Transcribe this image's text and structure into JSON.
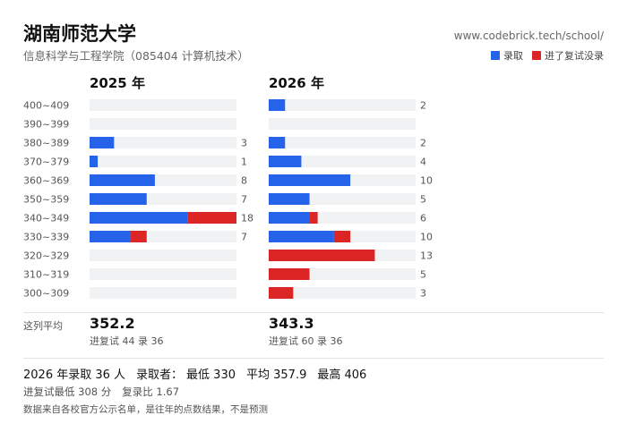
{
  "header": {
    "title": "湖南师范大学",
    "subtitle": "信息科学与工程学院（085404 计算机技术）",
    "url": "www.codebrick.tech/school/"
  },
  "legend": {
    "admitted": {
      "label": "录取",
      "color": "#2563eb"
    },
    "rejected": {
      "label": "进了复试没录",
      "color": "#dc2626"
    }
  },
  "chart_data": {
    "type": "bar",
    "orientation": "horizontal",
    "stacked": true,
    "categories": [
      "400~409",
      "390~399",
      "380~389",
      "370~379",
      "360~369",
      "350~359",
      "340~349",
      "330~339",
      "320~329",
      "310~319",
      "300~309"
    ],
    "panels": [
      {
        "year_label": "2025 年",
        "admitted": [
          0,
          0,
          3,
          1,
          8,
          7,
          12,
          5,
          0,
          0,
          0
        ],
        "rejected": [
          0,
          0,
          0,
          0,
          0,
          0,
          6,
          2,
          0,
          0,
          0
        ],
        "totals": [
          "",
          "",
          "3",
          "1",
          "8",
          "7",
          "18",
          "7",
          "",
          "",
          ""
        ],
        "xlim": [
          0,
          18
        ]
      },
      {
        "year_label": "2026 年",
        "admitted": [
          2,
          0,
          2,
          4,
          10,
          5,
          5,
          8,
          0,
          0,
          0
        ],
        "rejected": [
          0,
          0,
          0,
          0,
          0,
          0,
          1,
          2,
          13,
          5,
          3
        ],
        "totals": [
          "2",
          "",
          "2",
          "4",
          "10",
          "5",
          "6",
          "10",
          "13",
          "5",
          "3"
        ],
        "xlim": [
          0,
          18
        ]
      }
    ]
  },
  "averages": {
    "label": "这列平均",
    "panels": [
      {
        "value": "352.2",
        "note": "进复试 44 录 36"
      },
      {
        "value": "343.3",
        "note": "进复试 60 录 36"
      }
    ]
  },
  "summary": {
    "admit_count": "2026 年录取 36 人",
    "admitted_label": "录取者：",
    "min": "最低 330",
    "avg": "平均 357.9",
    "max": "最高 406"
  },
  "retest": {
    "min": "进复试最低 308 分",
    "ratio": "复录比 1.67"
  },
  "footnote": "数据来自各校官方公示名单，是往年的点数结果，不是预测"
}
